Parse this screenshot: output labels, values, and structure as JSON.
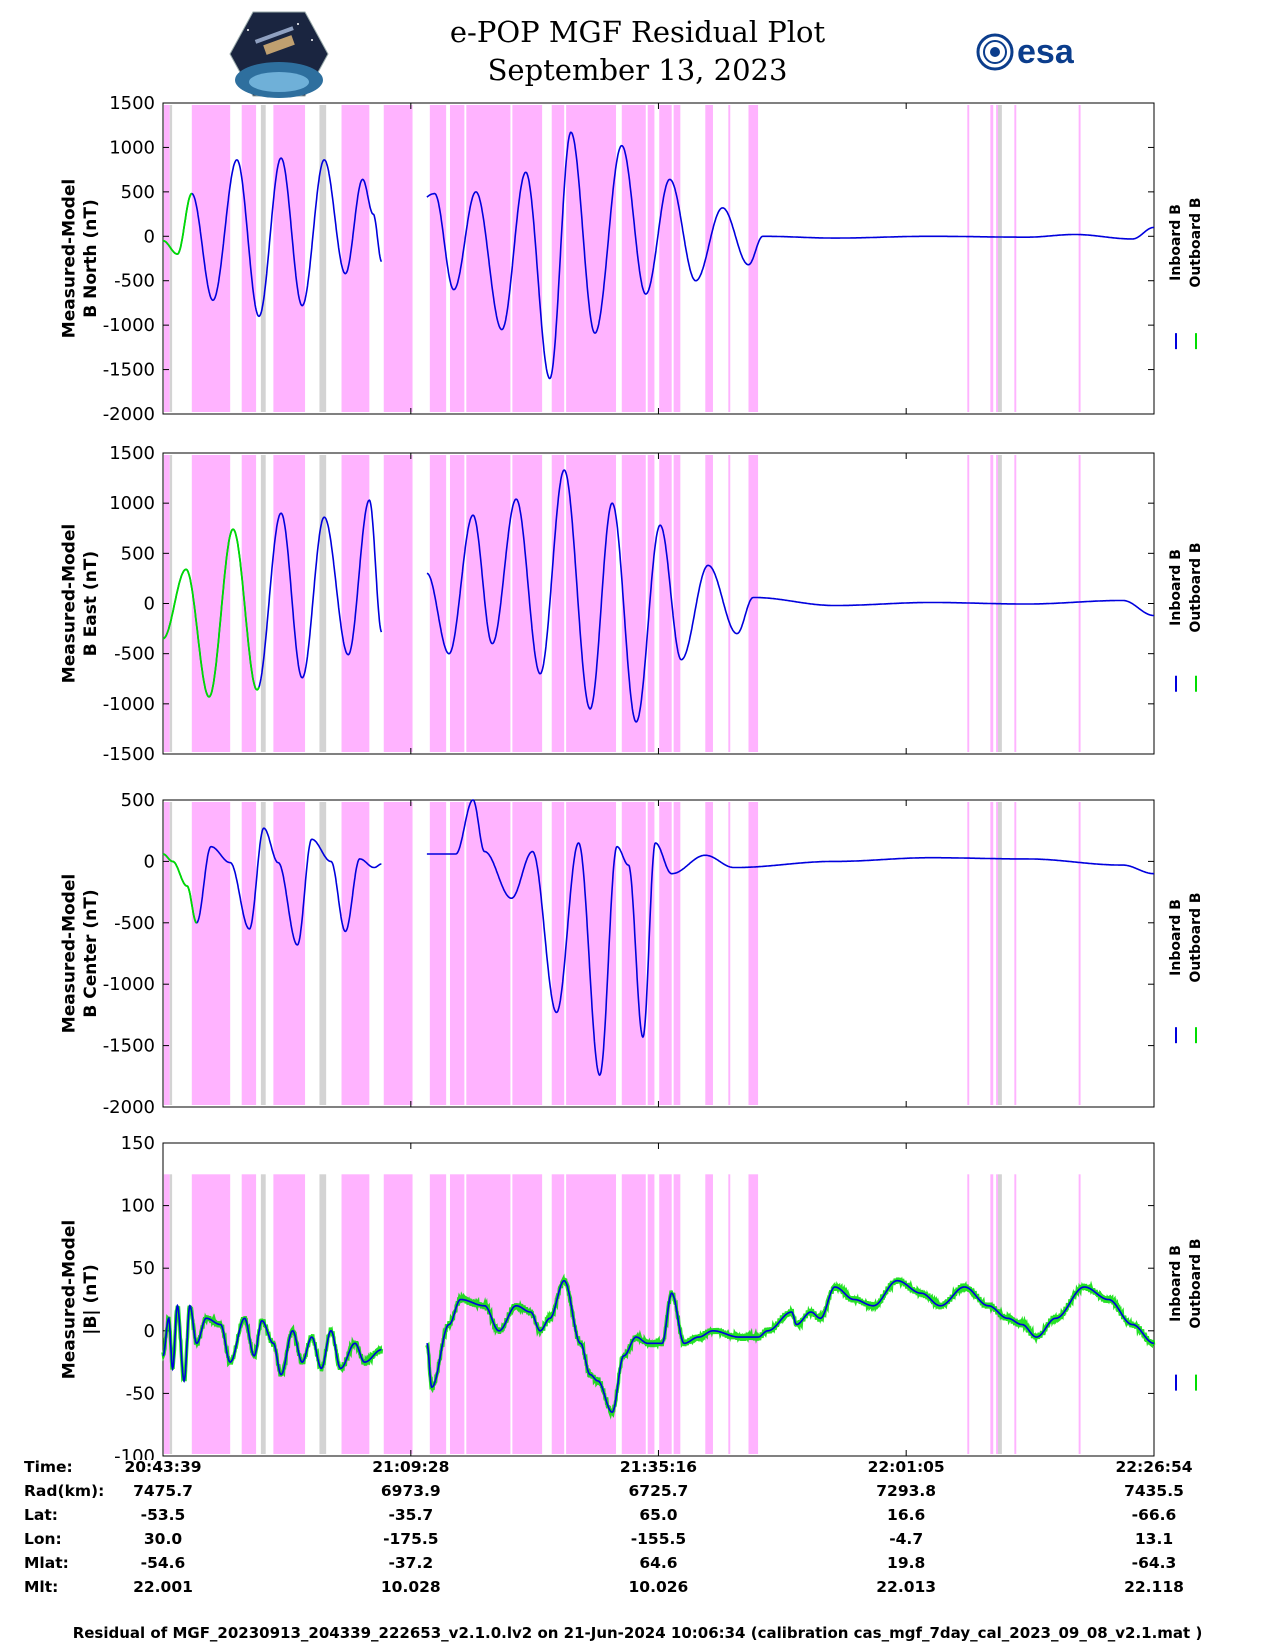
{
  "header": {
    "title": "e-POP MGF Residual Plot",
    "date": "September 13, 2023",
    "logo_left_icon": "cassiope-satellite-logo",
    "logo_right_text": "esa"
  },
  "colors": {
    "inboard": "#0000dd",
    "outboard": "#00dd00",
    "highlight": "#ffb3ff",
    "gray_band": "#d3d3d3"
  },
  "legend": {
    "inboard": "Inboard B",
    "outboard": "Outboard B"
  },
  "chart_data": [
    {
      "type": "line",
      "ylabel_line1": "Measured-Model",
      "ylabel_line2": "B North (nT)",
      "ylim": [
        -2000,
        1500
      ],
      "yticks": [
        "1500",
        "1000",
        "500",
        "0",
        "-500",
        "-1000",
        "-1500",
        "-2000"
      ],
      "x_range_minutes": [
        0,
        103.25
      ],
      "gap_minutes": [
        22.8,
        27.5
      ],
      "outboard_until_minutes": 3.0,
      "anchors": [
        [
          0,
          -50
        ],
        [
          1.5,
          -200
        ],
        [
          3.0,
          480
        ],
        [
          5.2,
          -720
        ],
        [
          7.7,
          860
        ],
        [
          10.0,
          -900
        ],
        [
          12.3,
          880
        ],
        [
          14.5,
          -780
        ],
        [
          16.8,
          860
        ],
        [
          19.0,
          -420
        ],
        [
          20.8,
          640
        ],
        [
          21.9,
          250
        ],
        [
          22.8,
          -290
        ],
        [
          28.3,
          480
        ],
        [
          30.3,
          -600
        ],
        [
          32.6,
          500
        ],
        [
          35.3,
          -1050
        ],
        [
          37.8,
          720
        ],
        [
          40.3,
          -1600
        ],
        [
          42.5,
          1170
        ],
        [
          45.0,
          -1090
        ],
        [
          47.8,
          1020
        ],
        [
          50.3,
          -650
        ],
        [
          52.8,
          640
        ],
        [
          55.5,
          -500
        ],
        [
          58.3,
          320
        ],
        [
          61.0,
          -320
        ],
        [
          62.5,
          0
        ],
        [
          70,
          -20
        ],
        [
          80,
          0
        ],
        [
          90,
          -10
        ],
        [
          95,
          20
        ],
        [
          101,
          -30
        ],
        [
          103.25,
          100
        ]
      ],
      "series": [
        {
          "name": "Inboard B"
        },
        {
          "name": "Outboard B"
        }
      ]
    },
    {
      "type": "line",
      "ylabel_line1": "Measured-Model",
      "ylabel_line2": "B East (nT)",
      "ylim": [
        -1500,
        1500
      ],
      "yticks": [
        "1500",
        "1000",
        "500",
        "0",
        "-500",
        "-1000",
        "-1500"
      ],
      "x_range_minutes": [
        0,
        103.25
      ],
      "gap_minutes": [
        22.8,
        27.5
      ],
      "outboard_until_minutes": 10.0,
      "anchors": [
        [
          0,
          -350
        ],
        [
          2.4,
          340
        ],
        [
          4.8,
          -930
        ],
        [
          7.3,
          740
        ],
        [
          9.8,
          -860
        ],
        [
          12.3,
          900
        ],
        [
          14.5,
          -740
        ],
        [
          16.8,
          860
        ],
        [
          19.3,
          -510
        ],
        [
          21.5,
          1030
        ],
        [
          22.8,
          -290
        ],
        [
          27.5,
          300
        ],
        [
          29.8,
          -500
        ],
        [
          32.3,
          880
        ],
        [
          34.3,
          -400
        ],
        [
          36.8,
          1040
        ],
        [
          39.3,
          -700
        ],
        [
          41.8,
          1330
        ],
        [
          44.5,
          -1050
        ],
        [
          46.8,
          1000
        ],
        [
          49.3,
          -1180
        ],
        [
          51.8,
          780
        ],
        [
          54.0,
          -560
        ],
        [
          56.8,
          380
        ],
        [
          59.8,
          -300
        ],
        [
          61.5,
          60
        ],
        [
          70,
          -20
        ],
        [
          80,
          10
        ],
        [
          90,
          -5
        ],
        [
          100,
          30
        ],
        [
          103.25,
          -120
        ]
      ],
      "series": [
        {
          "name": "Inboard B"
        },
        {
          "name": "Outboard B"
        }
      ]
    },
    {
      "type": "line",
      "ylabel_line1": "Measured-Model",
      "ylabel_line2": "B Center (nT)",
      "ylim": [
        -2000,
        500
      ],
      "yticks": [
        "500",
        "0",
        "-500",
        "-1000",
        "-1500",
        "-2000"
      ],
      "x_range_minutes": [
        0,
        103.25
      ],
      "gap_minutes": [
        22.8,
        27.5
      ],
      "outboard_until_minutes": 3.5,
      "anchors": [
        [
          0,
          60
        ],
        [
          1.0,
          0
        ],
        [
          2.5,
          -200
        ],
        [
          3.5,
          -500
        ],
        [
          5.0,
          120
        ],
        [
          7.0,
          -10
        ],
        [
          9.0,
          -550
        ],
        [
          10.5,
          270
        ],
        [
          12.0,
          -10
        ],
        [
          14.0,
          -680
        ],
        [
          15.5,
          180
        ],
        [
          17.5,
          0
        ],
        [
          19.0,
          -570
        ],
        [
          20.5,
          20
        ],
        [
          22.0,
          -50
        ],
        [
          22.8,
          -20
        ],
        [
          27.5,
          60
        ],
        [
          30.5,
          60
        ],
        [
          32.3,
          500
        ],
        [
          33.5,
          80
        ],
        [
          36.3,
          -300
        ],
        [
          38.5,
          80
        ],
        [
          41.0,
          -1230
        ],
        [
          43.3,
          150
        ],
        [
          45.5,
          -1740
        ],
        [
          47.3,
          120
        ],
        [
          48.5,
          -30
        ],
        [
          50.0,
          -1430
        ],
        [
          51.3,
          150
        ],
        [
          53.0,
          -100
        ],
        [
          56.5,
          50
        ],
        [
          59.5,
          -50
        ],
        [
          70,
          0
        ],
        [
          80,
          30
        ],
        [
          90,
          20
        ],
        [
          100,
          -30
        ],
        [
          103.25,
          -100
        ]
      ],
      "series": [
        {
          "name": "Inboard B"
        },
        {
          "name": "Outboard B"
        }
      ]
    },
    {
      "type": "line",
      "ylabel_line1": "Measured-Model",
      "ylabel_line2": "|B| (nT)",
      "ylim": [
        -100,
        150
      ],
      "yticks": [
        "150",
        "100",
        "50",
        "0",
        "-50",
        "-100"
      ],
      "x_range_minutes": [
        0,
        103.25
      ],
      "gap_minutes": [
        22.8,
        27.5
      ],
      "outboard_until_minutes": 103.25,
      "anchors": [
        [
          0,
          -20
        ],
        [
          0.6,
          10
        ],
        [
          1.0,
          -30
        ],
        [
          1.5,
          20
        ],
        [
          2.2,
          -40
        ],
        [
          2.8,
          20
        ],
        [
          3.5,
          -10
        ],
        [
          4.5,
          10
        ],
        [
          6.0,
          5
        ],
        [
          7.0,
          -25
        ],
        [
          8.5,
          10
        ],
        [
          9.5,
          -20
        ],
        [
          10.3,
          8
        ],
        [
          11.5,
          -10
        ],
        [
          12.3,
          -35
        ],
        [
          13.5,
          0
        ],
        [
          14.5,
          -25
        ],
        [
          15.5,
          -5
        ],
        [
          16.5,
          -30
        ],
        [
          17.5,
          0
        ],
        [
          18.5,
          -30
        ],
        [
          20.0,
          -10
        ],
        [
          21.0,
          -25
        ],
        [
          22.8,
          -15
        ],
        [
          27.5,
          -10
        ],
        [
          28.0,
          -45
        ],
        [
          29.8,
          5
        ],
        [
          31.0,
          25
        ],
        [
          33.5,
          20
        ],
        [
          35.0,
          0
        ],
        [
          36.8,
          20
        ],
        [
          38.3,
          15
        ],
        [
          39.3,
          0
        ],
        [
          40.3,
          10
        ],
        [
          41.8,
          40
        ],
        [
          43.5,
          -10
        ],
        [
          44.5,
          -35
        ],
        [
          45.3,
          -40
        ],
        [
          46.8,
          -65
        ],
        [
          48.0,
          -20
        ],
        [
          49.3,
          -5
        ],
        [
          50.5,
          -10
        ],
        [
          52.0,
          -10
        ],
        [
          53.0,
          30
        ],
        [
          54.3,
          -10
        ],
        [
          55.8,
          -5
        ],
        [
          57.3,
          0
        ],
        [
          60.0,
          -5
        ],
        [
          62.0,
          -5
        ],
        [
          63.0,
          0
        ],
        [
          65.5,
          15
        ],
        [
          66.0,
          5
        ],
        [
          67.5,
          15
        ],
        [
          68.5,
          10
        ],
        [
          70.0,
          35
        ],
        [
          72.0,
          25
        ],
        [
          74.0,
          20
        ],
        [
          76.5,
          40
        ],
        [
          79.0,
          30
        ],
        [
          81.0,
          20
        ],
        [
          83.5,
          35
        ],
        [
          86.0,
          20
        ],
        [
          88.0,
          10
        ],
        [
          89.5,
          5
        ],
        [
          91.0,
          -5
        ],
        [
          93.0,
          10
        ],
        [
          96.0,
          35
        ],
        [
          98.5,
          25
        ],
        [
          101.0,
          5
        ],
        [
          103.25,
          -10
        ]
      ],
      "series": [
        {
          "name": "Inboard B"
        },
        {
          "name": "Outboard B"
        }
      ]
    }
  ],
  "pink_bands_minutes": [
    [
      0.1,
      0.7
    ],
    [
      3.0,
      7.0
    ],
    [
      8.2,
      9.7
    ],
    [
      11.5,
      14.8
    ],
    [
      18.6,
      21.5
    ],
    [
      23.0,
      26.0
    ],
    [
      27.8,
      29.5
    ],
    [
      29.9,
      31.4
    ],
    [
      31.6,
      36.2
    ],
    [
      36.4,
      39.5
    ],
    [
      40.5,
      41.8
    ],
    [
      42.0,
      47.2
    ],
    [
      47.8,
      50.3
    ],
    [
      50.5,
      51.2
    ],
    [
      51.7,
      53.0
    ],
    [
      53.2,
      53.9
    ],
    [
      56.5,
      57.3
    ],
    [
      58.9,
      59.1
    ],
    [
      61.0,
      62.0
    ],
    [
      83.8,
      84.0
    ],
    [
      86.2,
      86.5
    ],
    [
      86.8,
      87.0
    ],
    [
      88.7,
      88.9
    ],
    [
      95.4,
      95.6
    ]
  ],
  "gray_bands_minutes": [
    [
      0.7,
      0.95
    ],
    [
      10.2,
      10.7
    ],
    [
      16.3,
      17.0
    ],
    [
      87.0,
      87.4
    ]
  ],
  "x_ticks_minutes": [
    0,
    25.82,
    51.62,
    77.43,
    103.25
  ],
  "ephemeris": {
    "rows": [
      {
        "label": "Time:",
        "values": [
          "20:43:39",
          "21:09:28",
          "21:35:16",
          "22:01:05",
          "22:26:54"
        ]
      },
      {
        "label": "Rad(km):",
        "values": [
          "7475.7",
          "6973.9",
          "6725.7",
          "7293.8",
          "7435.5"
        ]
      },
      {
        "label": "Lat:",
        "values": [
          "-53.5",
          "-35.7",
          "65.0",
          "16.6",
          "-66.6"
        ]
      },
      {
        "label": "Lon:",
        "values": [
          "30.0",
          "-175.5",
          "-155.5",
          "-4.7",
          "13.1"
        ]
      },
      {
        "label": "Mlat:",
        "values": [
          "-54.6",
          "-37.2",
          "64.6",
          "19.8",
          "-64.3"
        ]
      },
      {
        "label": "Mlt:",
        "values": [
          "22.001",
          "10.028",
          "10.026",
          "22.013",
          "22.118"
        ]
      }
    ]
  },
  "footer": "Residual of MGF_20230913_204339_222653_v2.1.0.lv2 on 21-Jun-2024 10:06:34 (calibration cas_mgf_7day_cal_2023_09_08_v2.1.mat )"
}
